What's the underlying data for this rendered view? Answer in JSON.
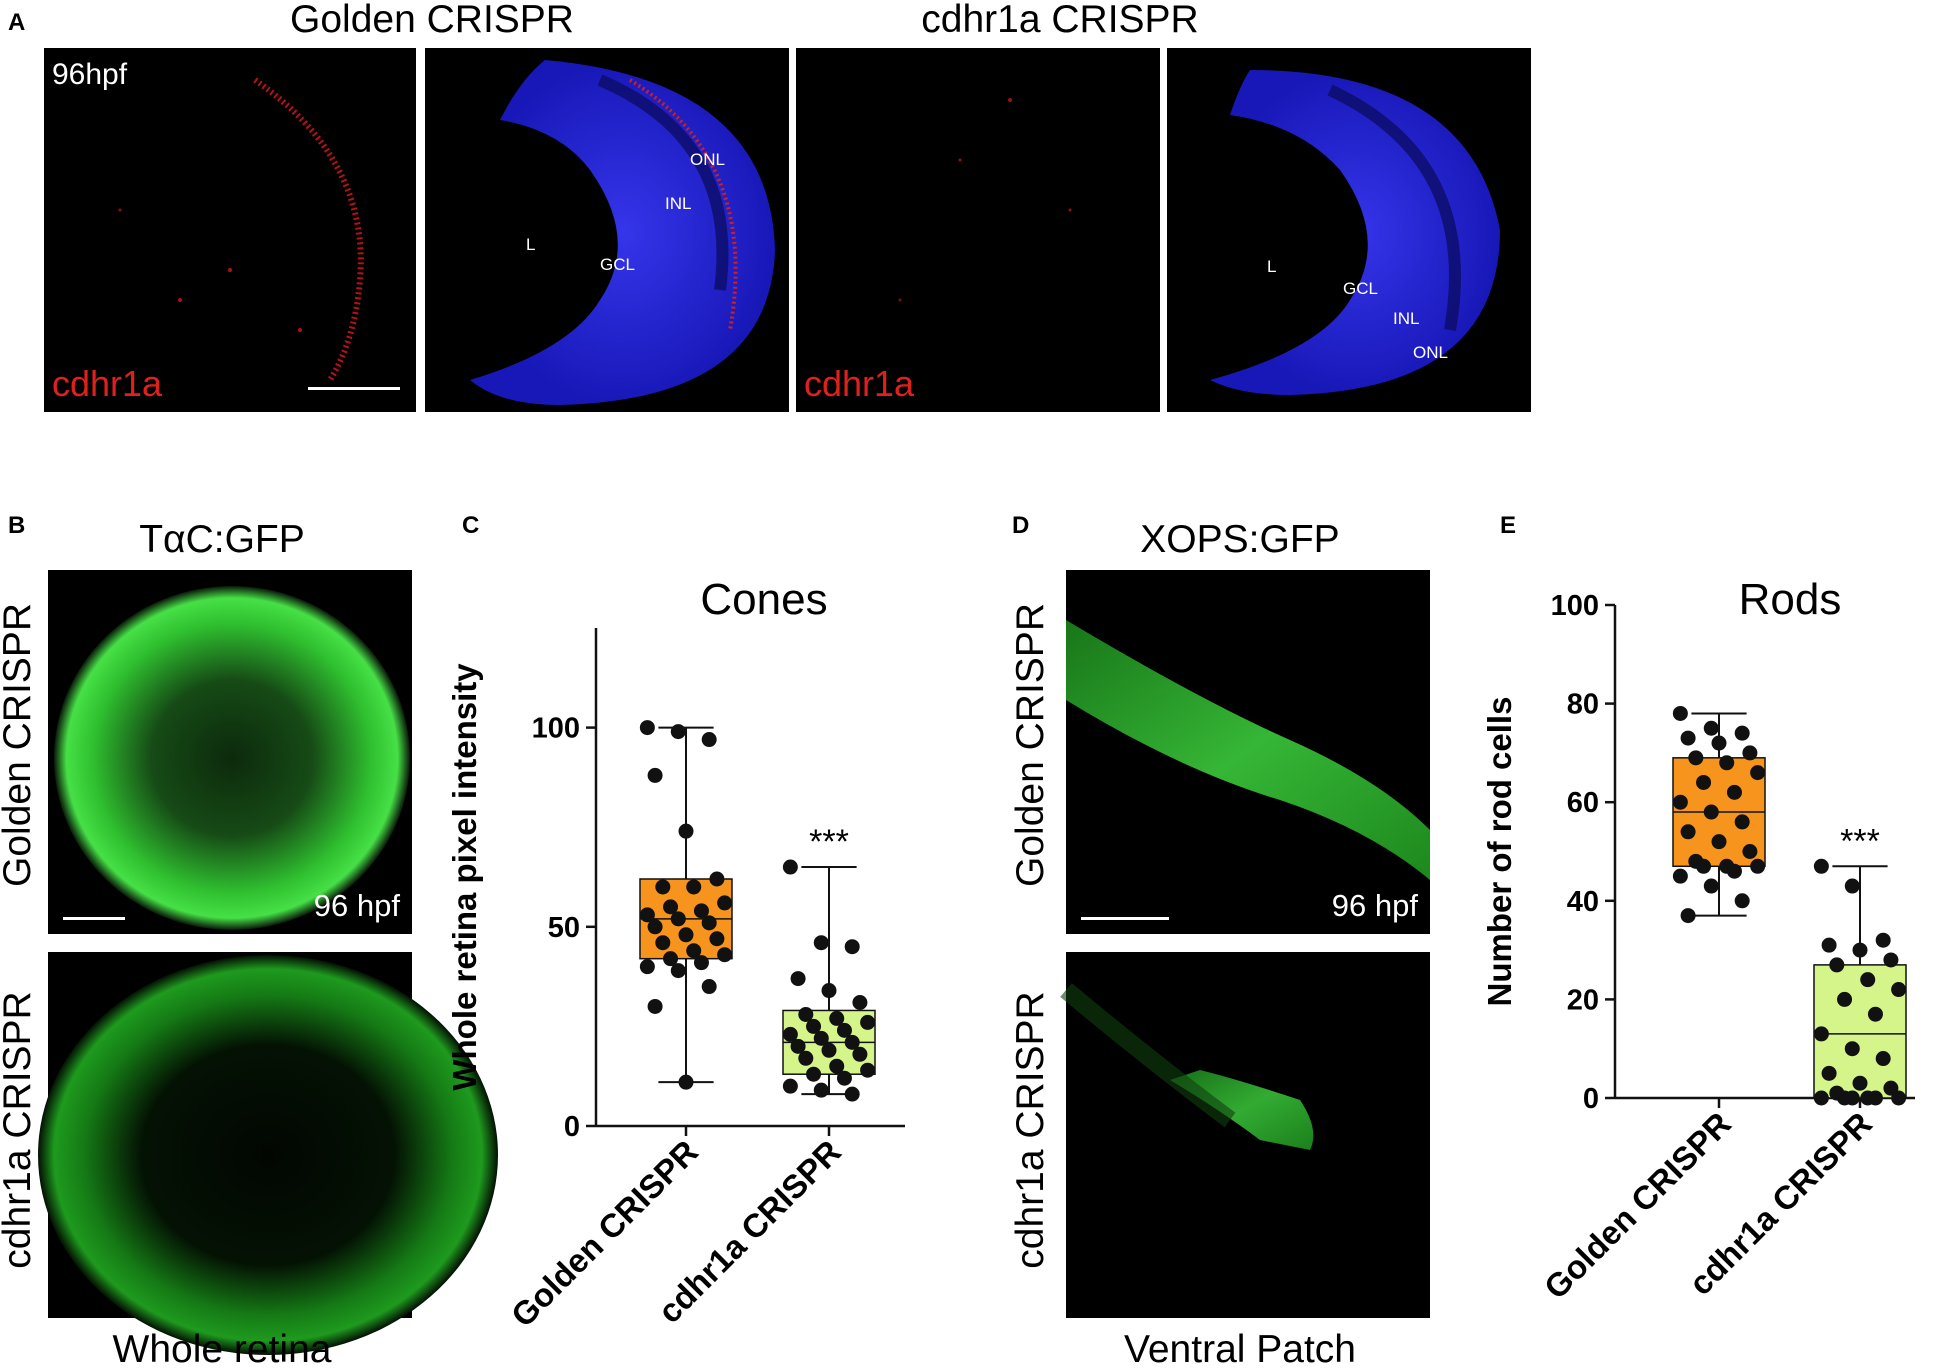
{
  "panel_a": {
    "letter": "A",
    "headers": [
      "Golden CRISPR",
      "cdhr1a CRISPR"
    ],
    "stage": "96hpf",
    "marker": "cdhr1a",
    "layers_golden": [
      "ONL",
      "INL",
      "L",
      "GCL"
    ],
    "layers_cdhr1a": [
      "L",
      "GCL",
      "INL",
      "ONL"
    ]
  },
  "panel_b": {
    "letter": "B",
    "title": "TαC:GFP",
    "rows": [
      "Golden CRISPR",
      "cdhr1a CRISPR"
    ],
    "stage": "96 hpf",
    "caption": "Whole retina"
  },
  "panel_d": {
    "letter": "D",
    "title": "XOPS:GFP",
    "rows": [
      "Golden CRISPR",
      "cdhr1a CRISPR"
    ],
    "stage": "96 hpf",
    "caption": "Ventral Patch"
  },
  "colors": {
    "golden_box": "#f7941d",
    "cdhr1a_box": "#d5f58a",
    "nuclei": "#2a2aff",
    "marker_red": "#e0201c",
    "gfp": "#3ce83c"
  },
  "chart_data": [
    {
      "panel": "C",
      "type": "box",
      "title": "Cones",
      "ylabel": "Whole retina pixel intensity",
      "xlabel": "",
      "categories": [
        "Golden CRISPR",
        "cdhr1a CRISPR"
      ],
      "ylim": [
        0,
        125
      ],
      "yticks": [
        0,
        50,
        100
      ],
      "grid": false,
      "boxes": [
        {
          "name": "Golden CRISPR",
          "min": 11,
          "q1": 42,
          "median": 52,
          "q3": 62,
          "max": 100
        },
        {
          "name": "cdhr1a CRISPR",
          "min": 8,
          "q1": 13,
          "median": 21,
          "q3": 29,
          "max": 65
        }
      ],
      "points": [
        [
          100,
          99,
          97,
          88,
          74,
          62,
          60,
          60,
          56,
          55,
          54,
          53,
          52,
          51,
          50,
          48,
          47,
          46,
          44,
          43,
          42,
          41,
          40,
          39,
          35,
          30,
          11
        ],
        [
          65,
          46,
          45,
          37,
          34,
          31,
          28,
          27,
          26,
          25,
          24,
          23,
          22,
          21,
          20,
          19,
          18,
          17,
          15,
          14,
          13,
          12,
          10,
          9,
          8
        ]
      ],
      "annotation": "***"
    },
    {
      "panel": "E",
      "type": "box",
      "title": "Rods",
      "ylabel": "Number of rod cells",
      "xlabel": "",
      "categories": [
        "Golden CRISPR",
        "cdhr1a CRISPR"
      ],
      "ylim": [
        0,
        100
      ],
      "yticks": [
        0,
        20,
        40,
        60,
        80,
        100
      ],
      "grid": false,
      "boxes": [
        {
          "name": "Golden CRISPR",
          "min": 37,
          "q1": 47,
          "median": 58,
          "q3": 69,
          "max": 78
        },
        {
          "name": "cdhr1a CRISPR",
          "min": 0,
          "q1": 0,
          "median": 13,
          "q3": 27,
          "max": 47
        }
      ],
      "points": [
        [
          78,
          75,
          74,
          73,
          72,
          70,
          69,
          68,
          66,
          64,
          62,
          60,
          58,
          56,
          54,
          52,
          50,
          48,
          47,
          47,
          47,
          46,
          45,
          43,
          40,
          37
        ],
        [
          47,
          43,
          32,
          31,
          30,
          28,
          27,
          24,
          22,
          20,
          17,
          13,
          10,
          8,
          5,
          3,
          2,
          1,
          0,
          0,
          0,
          0,
          0,
          0
        ]
      ],
      "annotation": "***"
    }
  ]
}
